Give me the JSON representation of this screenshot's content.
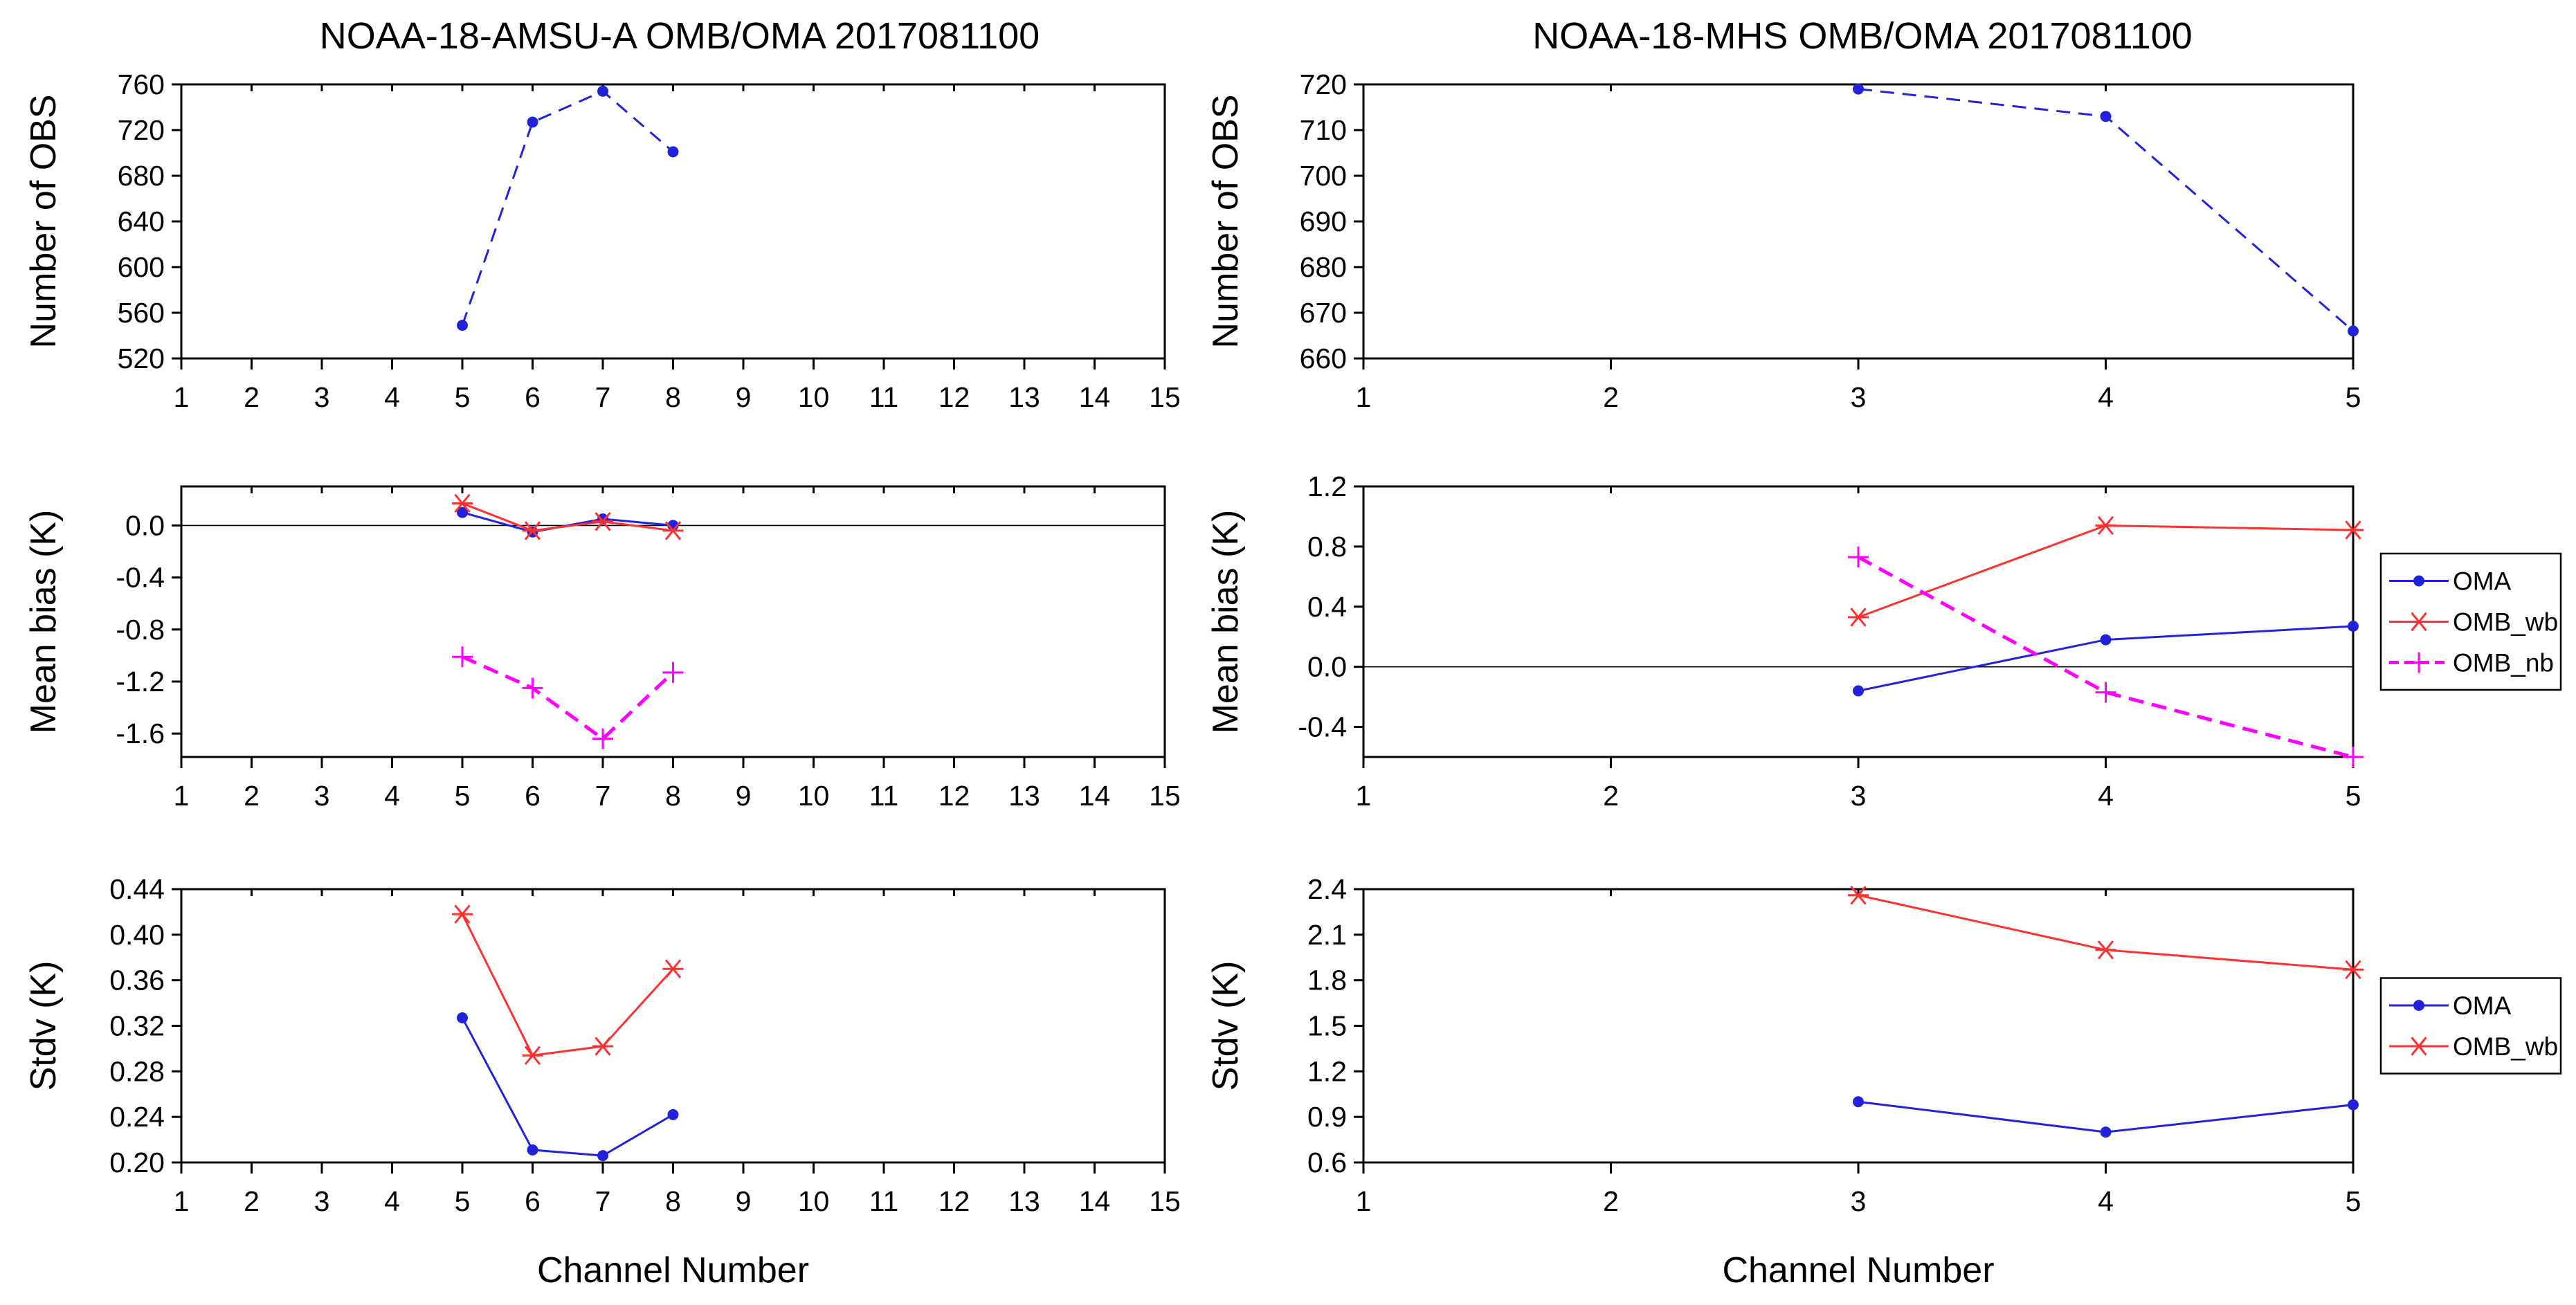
{
  "chart_data": [
    {
      "id": "amsua-nobs",
      "type": "line",
      "title": "NOAA-18-AMSU-A   OMB/OMA   2017081100",
      "xlabel": "",
      "ylabel": "Number of OBS",
      "xlim": [
        1,
        15
      ],
      "xticks": [
        1,
        2,
        3,
        4,
        5,
        6,
        7,
        8,
        9,
        10,
        11,
        12,
        13,
        14,
        15
      ],
      "ylim": [
        520,
        760
      ],
      "yticks": [
        520,
        560,
        600,
        640,
        680,
        720,
        760
      ],
      "ytick_labels": [
        "520",
        "560",
        "600",
        "640",
        "680",
        "720",
        "760"
      ],
      "zero_line": false,
      "series": [
        {
          "name": "nobs",
          "color": "#2222dd",
          "dash": true,
          "marker": "dot",
          "x": [
            5,
            6,
            7,
            8
          ],
          "y": [
            549,
            727,
            754,
            701
          ]
        }
      ]
    },
    {
      "id": "amsua-bias",
      "type": "line",
      "title": "",
      "xlabel": "",
      "ylabel": "Mean bias (K)",
      "xlim": [
        1,
        15
      ],
      "xticks": [
        1,
        2,
        3,
        4,
        5,
        6,
        7,
        8,
        9,
        10,
        11,
        12,
        13,
        14,
        15
      ],
      "ylim": [
        -1.78,
        0.3
      ],
      "yticks": [
        -1.6,
        -1.2,
        -0.8,
        -0.4,
        0.0
      ],
      "ytick_labels": [
        "-1.6",
        "-1.2",
        "-0.8",
        "-0.4",
        "0.0"
      ],
      "zero_line": true,
      "series": [
        {
          "name": "OMA",
          "color": "#2222dd",
          "dash": false,
          "marker": "dot",
          "x": [
            5,
            6,
            7,
            8
          ],
          "y": [
            0.1,
            -0.05,
            0.05,
            0.0
          ]
        },
        {
          "name": "OMB_wb",
          "color": "#ff3030",
          "dash": false,
          "marker": "star",
          "x": [
            5,
            6,
            7,
            8
          ],
          "y": [
            0.17,
            -0.04,
            0.03,
            -0.04
          ]
        },
        {
          "name": "OMB_nb",
          "color": "#ff00ff",
          "dash": true,
          "marker": "plus",
          "x": [
            5,
            6,
            7,
            8
          ],
          "y": [
            -1.01,
            -1.25,
            -1.64,
            -1.13
          ]
        }
      ]
    },
    {
      "id": "amsua-stdv",
      "type": "line",
      "title": "",
      "xlabel": "Channel Number",
      "ylabel": "Stdv (K)",
      "xlim": [
        1,
        15
      ],
      "xticks": [
        1,
        2,
        3,
        4,
        5,
        6,
        7,
        8,
        9,
        10,
        11,
        12,
        13,
        14,
        15
      ],
      "ylim": [
        0.2,
        0.44
      ],
      "yticks": [
        0.2,
        0.24,
        0.28,
        0.32,
        0.36,
        0.4,
        0.44
      ],
      "ytick_labels": [
        "0.20",
        "0.24",
        "0.28",
        "0.32",
        "0.36",
        "0.40",
        "0.44"
      ],
      "zero_line": false,
      "series": [
        {
          "name": "OMA",
          "color": "#2222dd",
          "dash": false,
          "marker": "dot",
          "x": [
            5,
            6,
            7,
            8
          ],
          "y": [
            0.327,
            0.211,
            0.206,
            0.242
          ]
        },
        {
          "name": "OMB_wb",
          "color": "#ff3030",
          "dash": false,
          "marker": "star",
          "x": [
            5,
            6,
            7,
            8
          ],
          "y": [
            0.418,
            0.294,
            0.302,
            0.37
          ]
        }
      ]
    },
    {
      "id": "mhs-nobs",
      "type": "line",
      "title": "NOAA-18-MHS   OMB/OMA   2017081100",
      "xlabel": "",
      "ylabel": "Number of OBS",
      "xlim": [
        1,
        5
      ],
      "xticks": [
        1,
        2,
        3,
        4,
        5
      ],
      "ylim": [
        660,
        720
      ],
      "yticks": [
        660,
        670,
        680,
        690,
        700,
        710,
        720
      ],
      "ytick_labels": [
        "660",
        "670",
        "680",
        "690",
        "700",
        "710",
        "720"
      ],
      "zero_line": false,
      "series": [
        {
          "name": "nobs",
          "color": "#2222dd",
          "dash": true,
          "marker": "dot",
          "x": [
            3,
            4,
            5
          ],
          "y": [
            719,
            713,
            666
          ]
        }
      ]
    },
    {
      "id": "mhs-bias",
      "type": "line",
      "title": "",
      "xlabel": "",
      "ylabel": "Mean bias (K)",
      "xlim": [
        1,
        5
      ],
      "xticks": [
        1,
        2,
        3,
        4,
        5
      ],
      "ylim": [
        -0.6,
        1.2
      ],
      "yticks": [
        -0.4,
        0.0,
        0.4,
        0.8,
        1.2
      ],
      "ytick_labels": [
        "-0.4",
        "0.0",
        "0.4",
        "0.8",
        "1.2"
      ],
      "zero_line": true,
      "series": [
        {
          "name": "OMA",
          "color": "#2222dd",
          "dash": false,
          "marker": "dot",
          "x": [
            3,
            4,
            5
          ],
          "y": [
            -0.16,
            0.18,
            0.27
          ]
        },
        {
          "name": "OMB_wb",
          "color": "#ff3030",
          "dash": false,
          "marker": "star",
          "x": [
            3,
            4,
            5
          ],
          "y": [
            0.33,
            0.94,
            0.91
          ]
        },
        {
          "name": "OMB_nb",
          "color": "#ff00ff",
          "dash": true,
          "marker": "plus",
          "x": [
            3,
            4,
            5
          ],
          "y": [
            0.73,
            -0.17,
            -0.6
          ]
        }
      ],
      "legend": {
        "placement": "right",
        "entries": [
          "OMA",
          "OMB_wb",
          "OMB_nb"
        ]
      }
    },
    {
      "id": "mhs-stdv",
      "type": "line",
      "title": "",
      "xlabel": "Channel Number",
      "ylabel": "Stdv (K)",
      "xlim": [
        1,
        5
      ],
      "xticks": [
        1,
        2,
        3,
        4,
        5
      ],
      "ylim": [
        0.6,
        2.4
      ],
      "yticks": [
        0.6,
        0.9,
        1.2,
        1.5,
        1.8,
        2.1,
        2.4
      ],
      "ytick_labels": [
        "0.6",
        "0.9",
        "1.2",
        "1.5",
        "1.8",
        "2.1",
        "2.4"
      ],
      "zero_line": false,
      "series": [
        {
          "name": "OMA",
          "color": "#2222dd",
          "dash": false,
          "marker": "dot",
          "x": [
            3,
            4,
            5
          ],
          "y": [
            1.0,
            0.8,
            0.98
          ]
        },
        {
          "name": "OMB_wb",
          "color": "#ff3030",
          "dash": false,
          "marker": "star",
          "x": [
            3,
            4,
            5
          ],
          "y": [
            2.36,
            2.0,
            1.87
          ]
        }
      ],
      "legend": {
        "placement": "right",
        "entries": [
          "OMA",
          "OMB_wb"
        ]
      }
    }
  ]
}
